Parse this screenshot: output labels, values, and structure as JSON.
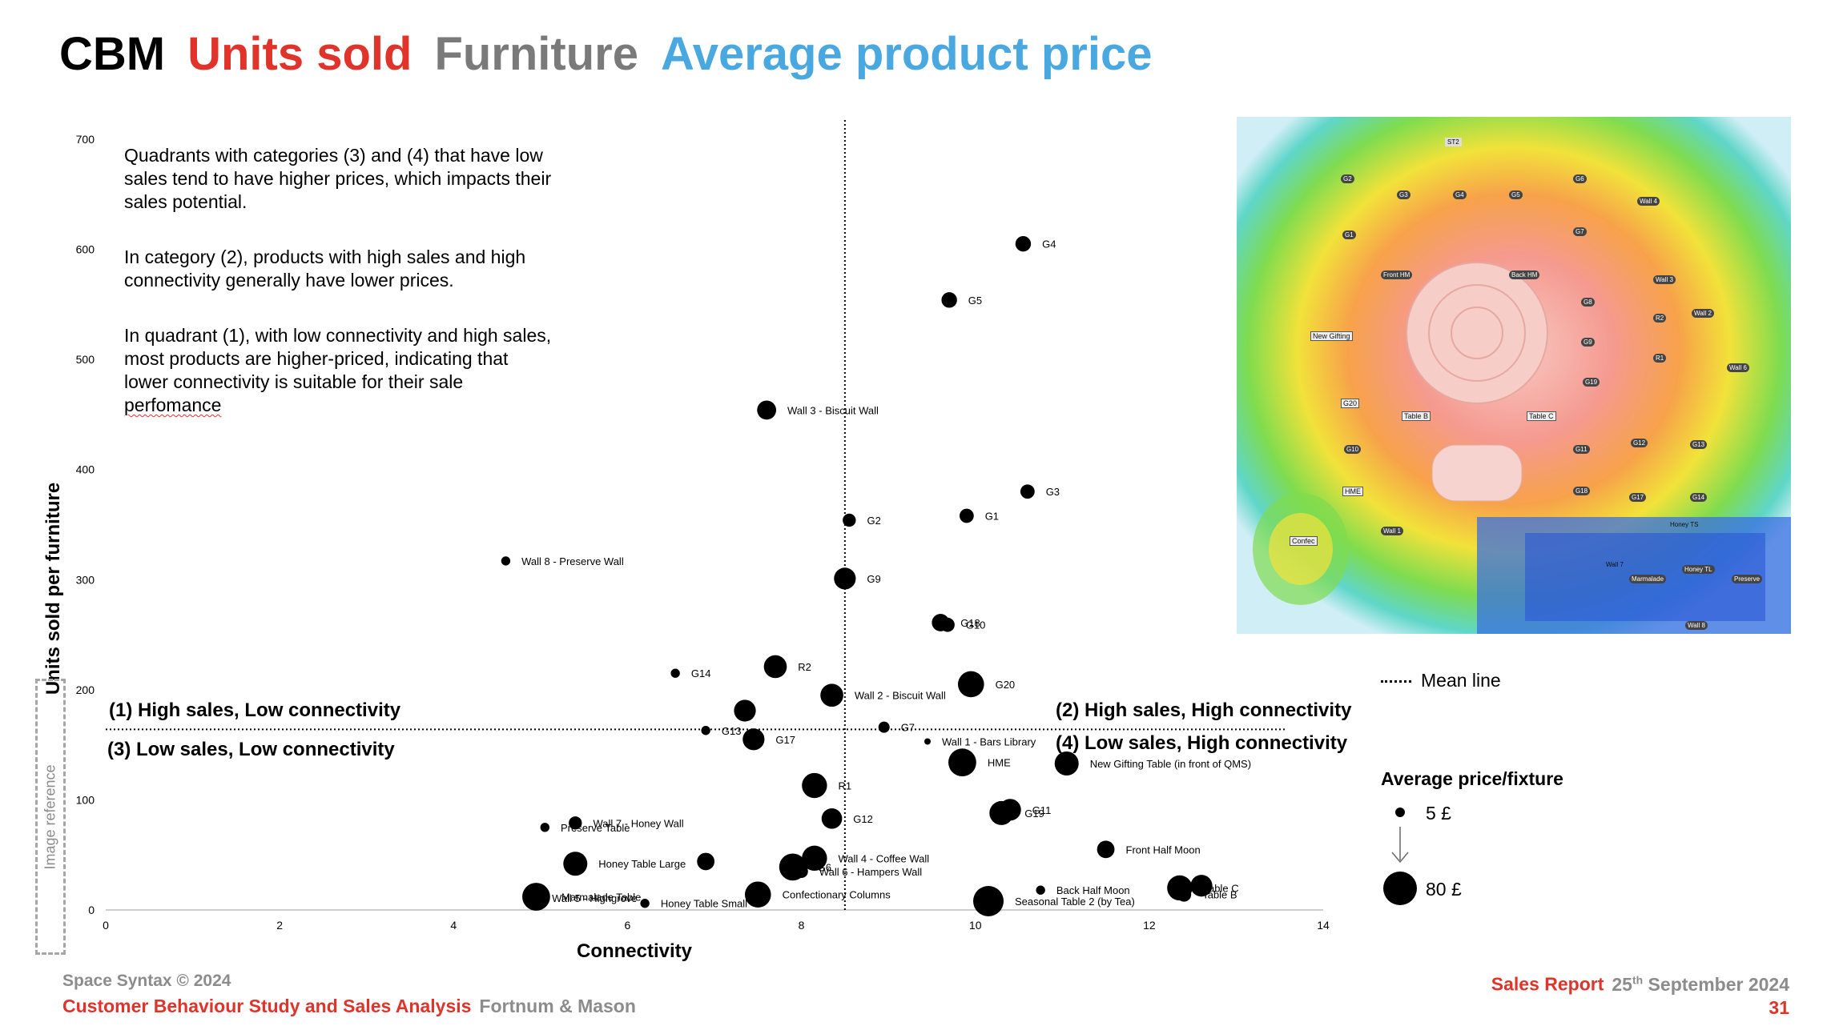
{
  "header": {
    "cbm": "CBM",
    "units_sold": "Units sold",
    "furniture": "Furniture",
    "avg_price": "Average product price"
  },
  "notes": {
    "p1": "Quadrants with categories (3) and (4) that have low sales tend to have higher prices, which impacts their sales potential.",
    "p2": "In category (2), products with high sales and high connectivity generally have lower prices.",
    "p3_main": "In quadrant (1), with low connectivity and high sales, most products are higher-priced, indicating that lower connectivity is suitable for their sale ",
    "p3_misspelled": "perfomance"
  },
  "quadrants": {
    "q1": "(1) High sales, Low connectivity",
    "q2": "(2) High sales, High connectivity",
    "q3": "(3) Low sales, Low connectivity",
    "q4": "(4) Low sales, High connectivity"
  },
  "legend": {
    "mean_line": "Mean line",
    "title": "Average price/fixture",
    "small": "5 £",
    "large": "80 £"
  },
  "image_reference": "Image reference",
  "footer": {
    "copyright": "Space Syntax © 2024",
    "study": "Customer Behaviour Study and Sales Analysis",
    "client": "Fortnum & Mason",
    "report": "Sales Report",
    "date_pre": "25",
    "date_sup": "th",
    "date_post": " September 2024",
    "page": "31"
  },
  "chart_data": {
    "type": "scatter",
    "title": "",
    "xlabel": "Connectivity",
    "ylabel": "Units sold per furniture",
    "xlim": [
      0,
      14
    ],
    "ylim": [
      0,
      700
    ],
    "xticks": [
      0,
      2,
      4,
      6,
      8,
      10,
      12,
      14
    ],
    "yticks": [
      0,
      100,
      200,
      300,
      400,
      500,
      600,
      700
    ],
    "mean_x": 8.5,
    "mean_y": 164,
    "size_encodes": "average price per fixture (£)",
    "points": [
      {
        "label": "G4",
        "x": 10.55,
        "y": 605,
        "price": 15
      },
      {
        "label": "G5",
        "x": 9.7,
        "y": 554,
        "price": 15
      },
      {
        "label": "Wall 3 - Biscuit Wall",
        "x": 7.6,
        "y": 454,
        "price": 25
      },
      {
        "label": "G3",
        "x": 10.6,
        "y": 380,
        "price": 12
      },
      {
        "label": "G1",
        "x": 9.9,
        "y": 358,
        "price": 12
      },
      {
        "label": "G2",
        "x": 8.55,
        "y": 354,
        "price": 10
      },
      {
        "label": "Wall 8 - Preserve Wall",
        "x": 4.6,
        "y": 317,
        "price": 5
      },
      {
        "label": "G9",
        "x": 8.5,
        "y": 301,
        "price": 35
      },
      {
        "label": "G18",
        "x": 9.6,
        "y": 261,
        "price": 20
      },
      {
        "label": "G10",
        "x": 9.68,
        "y": 259,
        "price": 12
      },
      {
        "label": "R2",
        "x": 7.7,
        "y": 221,
        "price": 40
      },
      {
        "label": "G14",
        "x": 6.55,
        "y": 215,
        "price": 5
      },
      {
        "label": "G20",
        "x": 9.95,
        "y": 205,
        "price": 55
      },
      {
        "label": "Wall 2 - Biscuit Wall",
        "x": 8.35,
        "y": 195,
        "price": 40
      },
      {
        "label": "",
        "x": 7.35,
        "y": 181,
        "price": 35
      },
      {
        "label": "G13",
        "x": 6.9,
        "y": 163,
        "price": 5
      },
      {
        "label": "G7",
        "x": 8.95,
        "y": 166,
        "price": 7
      },
      {
        "label": "G17",
        "x": 7.45,
        "y": 155,
        "price": 35
      },
      {
        "label": "Wall 1 - Bars Library",
        "x": 9.45,
        "y": 153,
        "price": 4
      },
      {
        "label": "HME",
        "x": 9.85,
        "y": 134,
        "price": 65
      },
      {
        "label": "New Gifting Table (in front of QMS)",
        "x": 11.05,
        "y": 133,
        "price": 45
      },
      {
        "label": "R1",
        "x": 8.15,
        "y": 113,
        "price": 50
      },
      {
        "label": "G11",
        "x": 10.4,
        "y": 91,
        "price": 35
      },
      {
        "label": "G19",
        "x": 10.3,
        "y": 88,
        "price": 45
      },
      {
        "label": "G12",
        "x": 8.35,
        "y": 83,
        "price": 30
      },
      {
        "label": "Wall 7 - Honey Wall",
        "x": 5.4,
        "y": 79,
        "price": 10
      },
      {
        "label": "Preserve Table",
        "x": 5.05,
        "y": 75,
        "price": 5
      },
      {
        "label": "Front Half Moon",
        "x": 11.5,
        "y": 55,
        "price": 20
      },
      {
        "label": "Wall 4 - Coffee Wall",
        "x": 8.15,
        "y": 47,
        "price": 50
      },
      {
        "label": "",
        "x": 6.9,
        "y": 44,
        "price": 20
      },
      {
        "label": "Honey Table Large",
        "x": 5.4,
        "y": 42,
        "price": 45
      },
      {
        "label": "G6",
        "x": 7.9,
        "y": 39,
        "price": 60
      },
      {
        "label": "Wall 6 - Hampers Wall",
        "x": 8.0,
        "y": 35,
        "price": 10
      },
      {
        "label": "Table C",
        "x": 12.35,
        "y": 20,
        "price": 50
      },
      {
        "label": "",
        "x": 12.6,
        "y": 22,
        "price": 35
      },
      {
        "label": "Back Half Moon",
        "x": 10.75,
        "y": 18,
        "price": 5
      },
      {
        "label": "Confectionary Columns",
        "x": 7.5,
        "y": 14,
        "price": 55
      },
      {
        "label": "Marmalade Table",
        "x": 4.95,
        "y": 12,
        "price": 65
      },
      {
        "label": "Table B",
        "x": 12.4,
        "y": 14,
        "price": 12
      },
      {
        "label": "Seasonal Table 2 (by Tea)",
        "x": 10.15,
        "y": 8,
        "price": 80
      },
      {
        "label": "Wall 5 - Highgrove",
        "x": 4.95,
        "y": 11,
        "price": 5
      },
      {
        "label": "Honey Table Small",
        "x": 6.2,
        "y": 6,
        "price": 5
      }
    ]
  },
  "map_labels": [
    "ST2",
    "G2",
    "G3",
    "G4",
    "G5",
    "G6",
    "G1",
    "G7",
    "Wall 4",
    "Front HM",
    "Back HM",
    "Wall 3",
    "G8",
    "R2",
    "Wall 2",
    "New Gifting",
    "G9",
    "R1",
    "Wall 6",
    "G19",
    "G20",
    "Table B",
    "Table C",
    "G10",
    "G11",
    "G12",
    "G13",
    "HME",
    "G18",
    "G17",
    "G14",
    "Wall 1",
    "Honey TS",
    "Confec",
    "Wall 7",
    "Marmalade",
    "Honey TL",
    "Preserve",
    "Wall 8"
  ]
}
